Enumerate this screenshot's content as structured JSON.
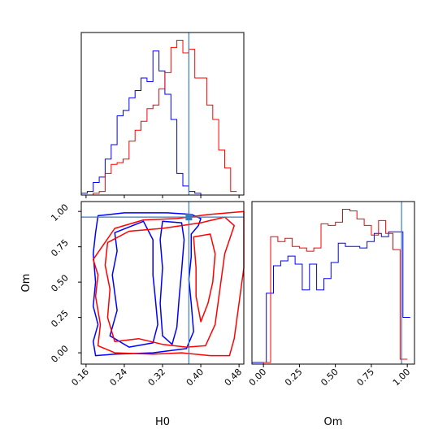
{
  "chart_data": {
    "type": "corner",
    "parameters": [
      "H0",
      "Om"
    ],
    "truth": {
      "H0": 0.375,
      "Om": 0.96
    },
    "colors": {
      "series_a": "#0000ff",
      "series_b": "#ff0000",
      "truth": "#3a7ebf"
    },
    "panels": [
      {
        "id": "hist-H0",
        "type": "histogram-step",
        "xlim": [
          0.15,
          0.49
        ],
        "xticks": [
          0.16,
          0.24,
          0.32,
          0.4,
          0.48
        ],
        "show_xtick_labels": false,
        "bin_width": 0.0125,
        "series": [
          {
            "color": "#0000ff",
            "x_start": 0.15,
            "values": [
              0.01,
              0.02,
              0.07,
              0.1,
              0.2,
              0.28,
              0.44,
              0.47,
              0.54,
              0.58,
              0.65,
              0.63,
              0.8,
              0.69,
              0.56,
              0.42,
              0.12,
              0.05,
              0.02,
              0.01,
              0,
              0
            ]
          },
          {
            "color": "#ff0000",
            "x_start": 0.175,
            "values": [
              0.01,
              0.02,
              0.12,
              0.17,
              0.18,
              0.2,
              0.3,
              0.36,
              0.41,
              0.48,
              0.5,
              0.59,
              0.68,
              0.82,
              0.86,
              0.79,
              0.81,
              0.65,
              0.65,
              0.5,
              0.42,
              0.25,
              0.15,
              0.02
            ]
          }
        ]
      },
      {
        "id": "hist-Om",
        "type": "histogram-step",
        "xlim": [
          -0.08,
          1.05
        ],
        "xticks": [
          0.0,
          0.25,
          0.5,
          0.75,
          1.0
        ],
        "xtick_labels": [
          "0.00",
          "0.25",
          "0.50",
          "0.75",
          "1.00"
        ],
        "xlabel": "Om",
        "bin_width": 0.05,
        "series": [
          {
            "color": "#0000ff",
            "x_start": -0.08,
            "values": [
              0.01,
              0.01,
              0.44,
              0.61,
              0.64,
              0.67,
              0.62,
              0.46,
              0.62,
              0.46,
              0.53,
              0.63,
              0.75,
              0.73,
              0.73,
              0.72,
              0.76,
              0.81,
              0.79,
              0.82,
              0.82,
              0.29
            ]
          },
          {
            "color": "#ff0000",
            "x_start": 0.0,
            "values": [
              0.01,
              0.79,
              0.76,
              0.78,
              0.73,
              0.72,
              0.7,
              0.72,
              0.87,
              0.86,
              0.88,
              0.96,
              0.95,
              0.9,
              0.86,
              0.8,
              0.89,
              0.81,
              0.71,
              0.03
            ]
          }
        ]
      },
      {
        "id": "contour-H0-Om",
        "type": "contour",
        "xlim": [
          0.15,
          0.49
        ],
        "ylim": [
          -0.08,
          1.07
        ],
        "xticks": [
          0.16,
          0.24,
          0.32,
          0.4,
          0.48
        ],
        "xtick_labels": [
          "0.16",
          "0.24",
          "0.32",
          "0.40",
          "0.48"
        ],
        "yticks": [
          0.0,
          0.25,
          0.5,
          0.75,
          1.0
        ],
        "ytick_labels": [
          "0.00",
          "0.25",
          "0.50",
          "0.75",
          "1.00"
        ],
        "xlabel": "H0",
        "ylabel": "Om",
        "contours": [
          {
            "color": "#0000ff",
            "points": [
              [
                0.185,
                0.97
              ],
              [
                0.24,
                0.99
              ],
              [
                0.33,
                0.99
              ],
              [
                0.38,
                0.98
              ],
              [
                0.4,
                0.95
              ],
              [
                0.395,
                0.9
              ],
              [
                0.38,
                0.84
              ],
              [
                0.38,
                0.68
              ],
              [
                0.375,
                0.52
              ],
              [
                0.38,
                0.35
              ],
              [
                0.385,
                0.15
              ],
              [
                0.37,
                0.03
              ],
              [
                0.3,
                0.0
              ],
              [
                0.22,
                -0.01
              ],
              [
                0.18,
                -0.02
              ],
              [
                0.175,
                0.08
              ],
              [
                0.185,
                0.2
              ],
              [
                0.175,
                0.33
              ],
              [
                0.18,
                0.5
              ],
              [
                0.175,
                0.7
              ],
              [
                0.18,
                0.85
              ]
            ]
          },
          {
            "color": "#0000ff",
            "points": [
              [
                0.22,
                0.85
              ],
              [
                0.28,
                0.93
              ],
              [
                0.3,
                0.8
              ],
              [
                0.3,
                0.55
              ],
              [
                0.305,
                0.38
              ],
              [
                0.31,
                0.2
              ],
              [
                0.3,
                0.07
              ],
              [
                0.25,
                0.04
              ],
              [
                0.21,
                0.12
              ],
              [
                0.225,
                0.3
              ],
              [
                0.215,
                0.55
              ],
              [
                0.225,
                0.72
              ]
            ]
          },
          {
            "color": "#0000ff",
            "points": [
              [
                0.32,
                0.93
              ],
              [
                0.36,
                0.92
              ],
              [
                0.365,
                0.8
              ],
              [
                0.36,
                0.58
              ],
              [
                0.355,
                0.4
              ],
              [
                0.35,
                0.18
              ],
              [
                0.34,
                0.06
              ],
              [
                0.32,
                0.12
              ],
              [
                0.315,
                0.35
              ],
              [
                0.32,
                0.6
              ],
              [
                0.315,
                0.8
              ]
            ]
          },
          {
            "color": "#ff0000",
            "points": [
              [
                0.175,
                0.66
              ],
              [
                0.22,
                0.88
              ],
              [
                0.28,
                0.94
              ],
              [
                0.35,
                0.95
              ],
              [
                0.42,
                0.98
              ],
              [
                0.49,
                1.0
              ],
              [
                0.49,
                0.6
              ],
              [
                0.48,
                0.35
              ],
              [
                0.47,
                0.1
              ],
              [
                0.46,
                -0.02
              ],
              [
                0.42,
                -0.02
              ],
              [
                0.36,
                0.0
              ],
              [
                0.3,
                -0.01
              ],
              [
                0.22,
                0.0
              ],
              [
                0.185,
                0.05
              ],
              [
                0.19,
                0.2
              ],
              [
                0.18,
                0.4
              ],
              [
                0.185,
                0.55
              ]
            ]
          },
          {
            "color": "#ff0000",
            "points": [
              [
                0.205,
                0.78
              ],
              [
                0.25,
                0.86
              ],
              [
                0.32,
                0.88
              ],
              [
                0.4,
                0.92
              ],
              [
                0.45,
                0.96
              ],
              [
                0.47,
                0.9
              ],
              [
                0.45,
                0.7
              ],
              [
                0.44,
                0.45
              ],
              [
                0.43,
                0.2
              ],
              [
                0.41,
                0.05
              ],
              [
                0.37,
                0.04
              ],
              [
                0.32,
                0.06
              ],
              [
                0.27,
                0.1
              ],
              [
                0.22,
                0.08
              ],
              [
                0.205,
                0.25
              ],
              [
                0.21,
                0.45
              ],
              [
                0.2,
                0.62
              ]
            ]
          },
          {
            "color": "#ff0000",
            "points": [
              [
                0.385,
                0.82
              ],
              [
                0.42,
                0.84
              ],
              [
                0.43,
                0.7
              ],
              [
                0.425,
                0.5
              ],
              [
                0.415,
                0.35
              ],
              [
                0.4,
                0.22
              ],
              [
                0.39,
                0.4
              ],
              [
                0.39,
                0.6
              ]
            ]
          }
        ]
      }
    ]
  }
}
